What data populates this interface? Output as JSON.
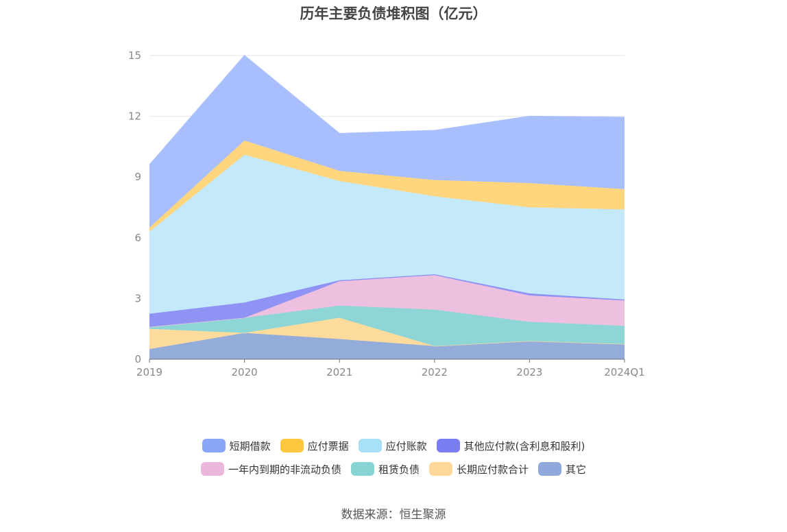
{
  "title": "历年主要负债堆积图（亿元）",
  "source": "数据来源：恒生聚源",
  "chart_data": {
    "type": "area",
    "stacked": true,
    "title": "历年主要负债堆积图（亿元）",
    "categories": [
      "2019",
      "2020",
      "2021",
      "2022",
      "2023",
      "2024Q1"
    ],
    "ylim": [
      0,
      15
    ],
    "yticks": [
      "0",
      "3",
      "6",
      "9",
      "12",
      "15"
    ],
    "grid": true,
    "legend_position": "bottom",
    "series": [
      {
        "name": "其它",
        "color": "#93acd9",
        "values": [
          0.5,
          1.3,
          1.0,
          0.65,
          0.9,
          0.75
        ]
      },
      {
        "name": "长期应付款合计",
        "color": "#fddb9c",
        "values": [
          1.0,
          0.0,
          1.05,
          0.0,
          0.0,
          0.0
        ]
      },
      {
        "name": "租赁负债",
        "color": "#8ed6d6",
        "values": [
          0.1,
          0.75,
          0.6,
          1.8,
          0.95,
          0.9
        ]
      },
      {
        "name": "一年内到期的非流动负债",
        "color": "#eec0df",
        "values": [
          0.0,
          0.0,
          1.2,
          1.7,
          1.3,
          1.25
        ]
      },
      {
        "name": "其他应付款(含利息和股利)",
        "color": "#8f93f4",
        "values": [
          0.65,
          0.75,
          0.05,
          0.05,
          0.1,
          0.05
        ]
      },
      {
        "name": "应付账款",
        "color": "#c4e9fb",
        "values": [
          4.05,
          7.3,
          4.9,
          3.85,
          4.25,
          4.45
        ]
      },
      {
        "name": "应付票据",
        "color": "#ffd67e",
        "values": [
          0.2,
          0.7,
          0.5,
          0.8,
          1.2,
          1.0
        ]
      },
      {
        "name": "短期借款",
        "color": "#a9bffd",
        "values": [
          3.1,
          4.2,
          1.85,
          2.45,
          3.3,
          3.55
        ]
      }
    ],
    "legend": [
      [
        {
          "name": "短期借款",
          "color": "#89a6f8"
        },
        {
          "name": "应付票据",
          "color": "#ffc73e"
        },
        {
          "name": "应付账款",
          "color": "#a8e0f8"
        },
        {
          "name": "其他应付款(含利息和股利)",
          "color": "#7a7ef2"
        }
      ],
      [
        {
          "name": "一年内到期的非流动负债",
          "color": "#ebb7dc"
        },
        {
          "name": "租赁负债",
          "color": "#86d4d4"
        },
        {
          "name": "长期应付款合计",
          "color": "#fdd898"
        },
        {
          "name": "其它",
          "color": "#8fa9dc"
        }
      ]
    ]
  }
}
